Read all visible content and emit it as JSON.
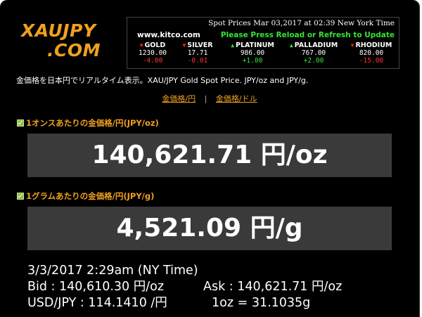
{
  "logo": {
    "line1": "XAUJPY",
    "line2": ".COM"
  },
  "kitco": {
    "header": "Spot Prices  Mar 03,2017 at 02:39  New York Time",
    "site": "www.kitco.com",
    "notice": "Please Press Reload or Refresh to Update",
    "metals": [
      {
        "name": "GOLD",
        "price": "1230.00",
        "change": "-4.00",
        "dir": "down"
      },
      {
        "name": "SILVER",
        "price": "17.71",
        "change": "-0.01",
        "dir": "down"
      },
      {
        "name": "PLATINUM",
        "price": "986.00",
        "change": "+1.00",
        "dir": "up"
      },
      {
        "name": "PALLADIUM",
        "price": "767.00",
        "change": "+2.00",
        "dir": "up"
      },
      {
        "name": "RHODIUM",
        "price": "820.00",
        "change": "-15.00",
        "dir": "down"
      }
    ]
  },
  "intro": "金価格を日本円でリアルタイム表示。XAU/JPY Gold Spot Price. JPY/oz and JPY/g.",
  "links": {
    "yen": "金価格/円",
    "sep": "|",
    "dollar": "金価格/ドル"
  },
  "ounce": {
    "heading": "1オンスあたりの金価格/円(JPY/oz)",
    "value": "140,621.71 円/oz"
  },
  "gram": {
    "heading": "1グラムあたりの金価格/円(JPY/g)",
    "value": "4,521.09 円/g"
  },
  "info": {
    "time": "3/3/2017 2:29am (NY Time)",
    "bid": "Bid : 140,610.30 円/oz",
    "ask": "Ask : 140,621.71 円/oz",
    "usdjpy": "USD/JPY : 114.1410 /円",
    "oz": "1oz = 31.1035g"
  },
  "colors": {
    "accent": "#f0a020",
    "up": "#33e533",
    "down": "#ff2222",
    "box": "#3a3a3a"
  }
}
